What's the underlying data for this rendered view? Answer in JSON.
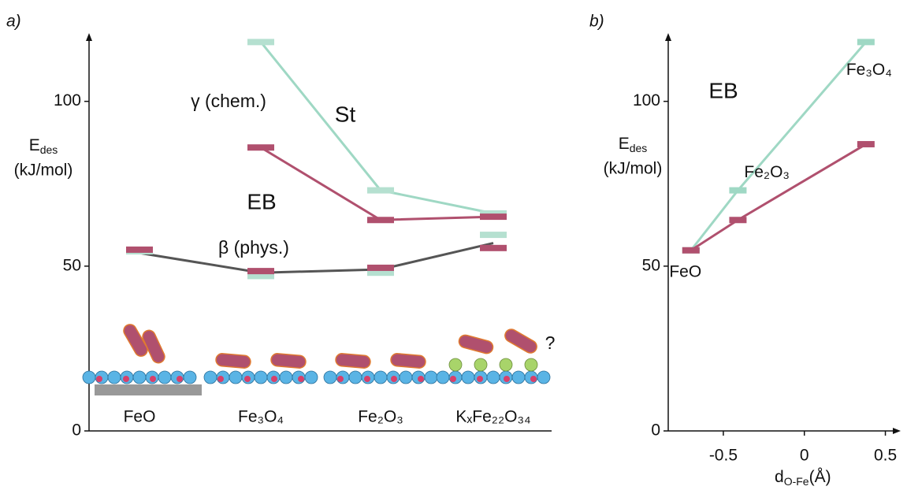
{
  "chart_data": [
    {
      "type": "line",
      "panel_label": "a)",
      "ylabel": {
        "main": "E",
        "sub": "des",
        "unit": "(kJ/mol)"
      },
      "categories": [
        "FeO",
        "Fe₃O₄",
        "Fe₂O₃",
        "KₓFe₂₂O₃₄"
      ],
      "ylim": [
        0,
        120
      ],
      "yticks": [
        0,
        50,
        100
      ],
      "series": [
        {
          "name": "St",
          "color": "#9fd8c4",
          "values": [
            null,
            118,
            73,
            66
          ]
        },
        {
          "name": "EB",
          "color": "#b0506e",
          "values": [
            null,
            86,
            64,
            65
          ]
        },
        {
          "color": "#555555",
          "values": [
            54,
            48,
            49,
            57
          ]
        }
      ],
      "markers": [
        {
          "color": "#b5e0d0",
          "values": [
            54.5,
            47,
            48,
            59.5
          ]
        },
        {
          "color": "#b0506e",
          "values": [
            55,
            48.5,
            49.5,
            55.5
          ]
        }
      ],
      "annotations": [
        "γ (chem.)",
        "St",
        "EB",
        "β (phys.)",
        "?"
      ]
    },
    {
      "type": "line",
      "panel_label": "b)",
      "ylabel": {
        "main": "E",
        "sub": "des",
        "unit": "(kJ/mol)"
      },
      "xlabel": {
        "main": "d",
        "sub": "O-Fe",
        "unit": "(Å)"
      },
      "xlim": [
        -0.84,
        0.58
      ],
      "xticks": [
        -0.5,
        0,
        0.5
      ],
      "ylim": [
        0,
        120
      ],
      "yticks": [
        0,
        50,
        100
      ],
      "x": [
        -0.7,
        -0.41,
        0.38
      ],
      "point_labels": [
        "FeO",
        "Fe₂O₃",
        "Fe₃O₄"
      ],
      "series": [
        {
          "color": "#9fd8c4",
          "values": [
            54.8,
            73,
            118
          ]
        },
        {
          "color": "#b0506e",
          "values": [
            54.8,
            64,
            87
          ]
        }
      ],
      "annotations": [
        "EB"
      ]
    }
  ]
}
